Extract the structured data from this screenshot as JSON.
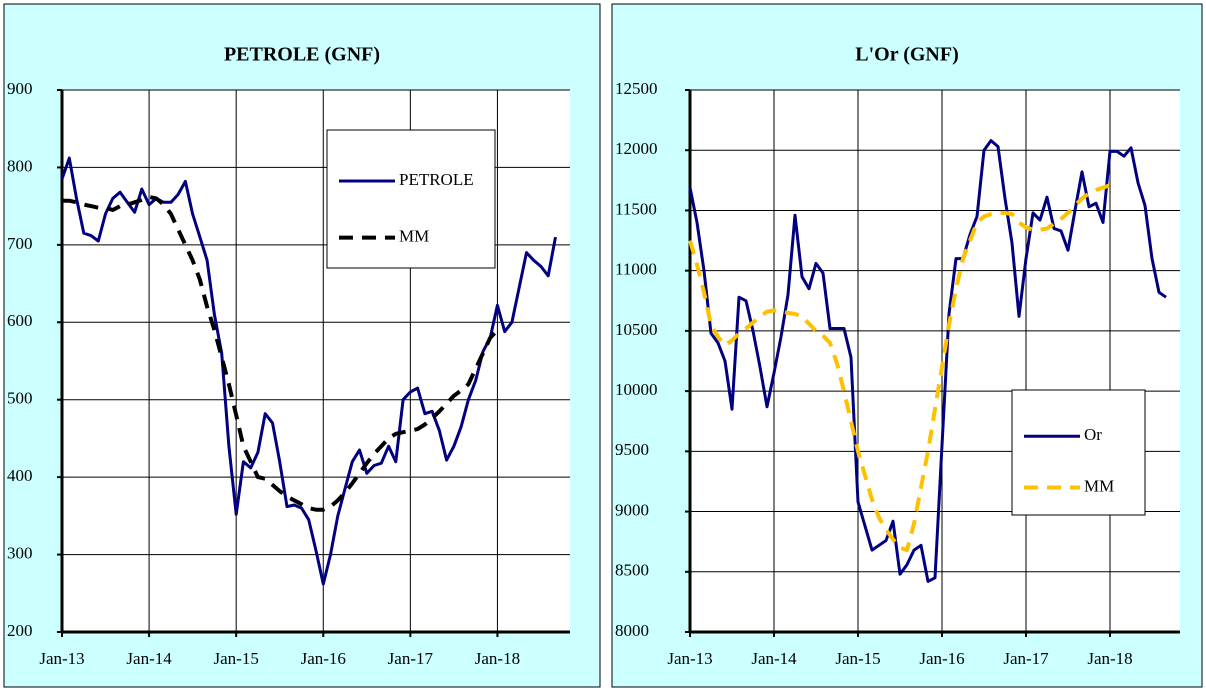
{
  "chart_data": [
    {
      "type": "line",
      "title": "PETROLE (GNF)",
      "x": [
        0,
        1,
        2,
        3,
        4,
        5,
        6,
        7,
        8,
        9,
        10,
        11,
        12,
        13,
        14,
        15,
        16,
        17,
        18,
        19,
        20,
        21,
        22,
        23,
        24,
        25,
        26,
        27,
        28,
        29,
        30,
        31,
        32,
        33,
        34,
        35,
        36,
        37,
        38,
        39,
        40,
        41,
        42,
        43,
        44,
        45,
        46,
        47,
        48,
        49,
        50,
        51,
        52,
        53,
        54,
        55,
        56,
        57,
        58,
        59,
        60,
        61,
        62,
        63,
        64,
        65,
        66,
        67,
        68
      ],
      "series": [
        {
          "name": "PETROLE",
          "color": "#000080",
          "line_style": "solid",
          "values": [
            785,
            812,
            760,
            715,
            712,
            705,
            740,
            760,
            768,
            755,
            742,
            772,
            752,
            760,
            755,
            755,
            765,
            782,
            740,
            710,
            680,
            610,
            560,
            440,
            352,
            420,
            412,
            432,
            482,
            470,
            420,
            362,
            364,
            360,
            345,
            305,
            262,
            300,
            350,
            385,
            420,
            435,
            405,
            415,
            418,
            440,
            420,
            500,
            510,
            515,
            482,
            485,
            460,
            422,
            440,
            465,
            500,
            525,
            562,
            580,
            622,
            588,
            600,
            645,
            690,
            680,
            672,
            660,
            710
          ]
        },
        {
          "name": "MM",
          "color": "#000000",
          "line_style": "dashed",
          "values": [
            757,
            757,
            755,
            752,
            750,
            748,
            748,
            745,
            750,
            752,
            755,
            758,
            762,
            760,
            752,
            740,
            720,
            700,
            680,
            655,
            620,
            590,
            555,
            520,
            480,
            440,
            420,
            400,
            398,
            390,
            382,
            375,
            370,
            365,
            360,
            358,
            358,
            362,
            370,
            380,
            392,
            405,
            418,
            430,
            440,
            450,
            456,
            458,
            460,
            462,
            468,
            476,
            485,
            495,
            505,
            512,
            520,
            540,
            560,
            580,
            590,
            null,
            null,
            null,
            null,
            null,
            null,
            null,
            null
          ]
        }
      ],
      "xlim": [
        0,
        70
      ],
      "xticks": [
        {
          "value": 0,
          "label": "Jan-13"
        },
        {
          "value": 12,
          "label": "Jan-14"
        },
        {
          "value": 24,
          "label": "Jan-15"
        },
        {
          "value": 36,
          "label": "Jan-16"
        },
        {
          "value": 48,
          "label": "Jan-17"
        },
        {
          "value": 60,
          "label": "Jan-18"
        }
      ],
      "ylim": [
        200,
        900
      ],
      "yticks": [
        200,
        300,
        400,
        500,
        600,
        700,
        800,
        900
      ],
      "grid": true
    },
    {
      "type": "line",
      "title": "L'Or (GNF)",
      "x": [
        0,
        1,
        2,
        3,
        4,
        5,
        6,
        7,
        8,
        9,
        10,
        11,
        12,
        13,
        14,
        15,
        16,
        17,
        18,
        19,
        20,
        21,
        22,
        23,
        24,
        25,
        26,
        27,
        28,
        29,
        30,
        31,
        32,
        33,
        34,
        35,
        36,
        37,
        38,
        39,
        40,
        41,
        42,
        43,
        44,
        45,
        46,
        47,
        48,
        49,
        50,
        51,
        52,
        53,
        54,
        55,
        56,
        57,
        58,
        59,
        60,
        61,
        62,
        63,
        64,
        65,
        66,
        67,
        68
      ],
      "series": [
        {
          "name": "Or",
          "color": "#000080",
          "line_style": "solid",
          "values": [
            11690,
            11400,
            11000,
            10480,
            10400,
            10250,
            9850,
            10780,
            10750,
            10500,
            10200,
            9870,
            10150,
            10450,
            10800,
            11460,
            10950,
            10850,
            11060,
            10980,
            10520,
            10520,
            10520,
            10280,
            9080,
            8880,
            8680,
            8720,
            8760,
            8920,
            8480,
            8560,
            8680,
            8720,
            8420,
            8450,
            9550,
            10640,
            11100,
            11100,
            11300,
            11450,
            12000,
            12080,
            12030,
            11600,
            11230,
            10620,
            11100,
            11480,
            11420,
            11610,
            11350,
            11330,
            11170,
            11500,
            11820,
            11530,
            11560,
            11400,
            11990,
            11990,
            11950,
            12020,
            11730,
            11540,
            11100,
            10820,
            10780
          ]
        },
        {
          "name": "MM",
          "color": "#ffc000",
          "line_style": "dashed",
          "values": [
            11250,
            11050,
            10820,
            10550,
            10450,
            10380,
            10420,
            10480,
            10520,
            10570,
            10620,
            10660,
            10670,
            10660,
            10650,
            10640,
            10620,
            10560,
            10500,
            10460,
            10400,
            10230,
            10000,
            9750,
            9500,
            9300,
            9100,
            8950,
            8850,
            8770,
            8700,
            8680,
            8900,
            9200,
            9500,
            9850,
            10200,
            10550,
            10850,
            11100,
            11250,
            11400,
            11450,
            11470,
            11480,
            11480,
            11470,
            11400,
            11360,
            11340,
            11340,
            11350,
            11390,
            11430,
            11480,
            11540,
            11600,
            11640,
            11670,
            11690,
            11710,
            null,
            null,
            null,
            null,
            null,
            null,
            null,
            null
          ]
        }
      ],
      "xlim": [
        0,
        70
      ],
      "xticks": [
        {
          "value": 0,
          "label": "Jan-13"
        },
        {
          "value": 12,
          "label": "Jan-14"
        },
        {
          "value": 24,
          "label": "Jan-15"
        },
        {
          "value": 36,
          "label": "Jan-16"
        },
        {
          "value": 48,
          "label": "Jan-17"
        },
        {
          "value": 60,
          "label": "Jan-18"
        }
      ],
      "ylim": [
        8000,
        12500
      ],
      "yticks": [
        8000,
        8500,
        9000,
        9500,
        10000,
        10500,
        11000,
        11500,
        12000,
        12500
      ],
      "grid": true
    }
  ]
}
